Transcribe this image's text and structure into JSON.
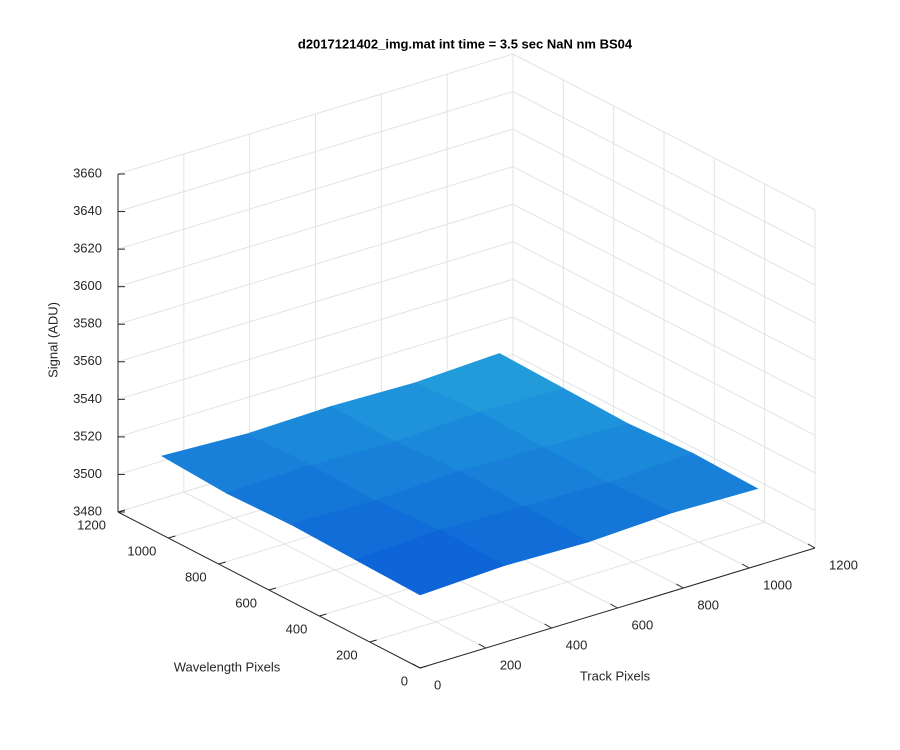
{
  "chart_data": {
    "type": "surface",
    "title": "d2017121402_img.mat int time = 3.5 sec  NaN nm BS04",
    "xlabel": "Track Pixels",
    "ylabel": "Wavelength Pixels",
    "zlabel": "Signal (ADU)",
    "x": [
      0,
      256,
      512,
      768,
      1024
    ],
    "y": [
      0,
      256,
      512,
      768,
      1024
    ],
    "z": [
      [
        3519,
        3521,
        3520,
        3522,
        3521
      ],
      [
        3520,
        3522,
        3521,
        3520,
        3522
      ],
      [
        3521,
        3520,
        3522,
        3521,
        3520
      ],
      [
        3520,
        3521,
        3520,
        3522,
        3521
      ],
      [
        3522,
        3520,
        3521,
        3520,
        3522
      ]
    ],
    "xlim": [
      0,
      1200
    ],
    "ylim": [
      0,
      1200
    ],
    "zlim": [
      3480,
      3660
    ],
    "xticks": [
      0,
      200,
      400,
      600,
      800,
      1000,
      1200
    ],
    "yticks": [
      0,
      200,
      400,
      600,
      800,
      1000,
      1200
    ],
    "zticks": [
      3480,
      3500,
      3520,
      3540,
      3560,
      3580,
      3600,
      3620,
      3640,
      3660
    ],
    "grid": true,
    "colors": [
      "#0a5cd6",
      "#25a4dc"
    ]
  }
}
